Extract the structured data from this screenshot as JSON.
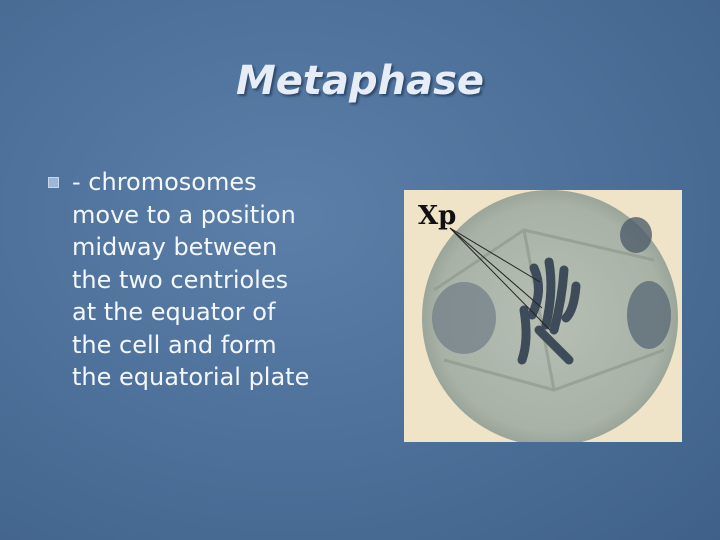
{
  "slide": {
    "title": "Metaphase",
    "bullet_lines": [
      "- chromosomes",
      "move to a position",
      "midway between",
      "the two centrioles",
      "at the equator of",
      "the cell and form",
      "the equatorial plate"
    ],
    "image_label": "Xp"
  }
}
